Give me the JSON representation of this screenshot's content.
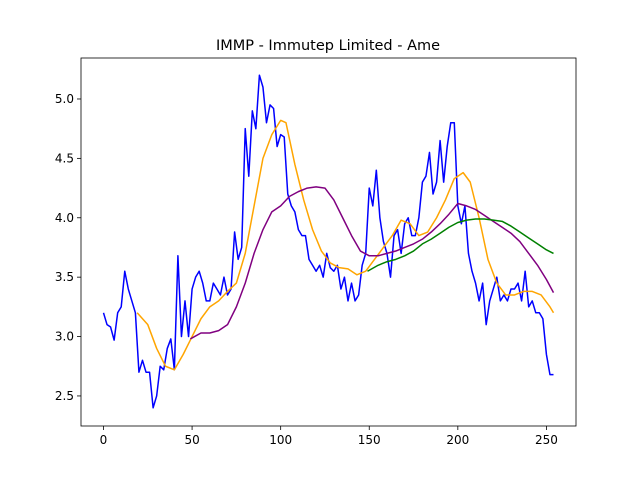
{
  "chart_data": {
    "type": "line",
    "title": "IMMP - Immutep Limited - Ame",
    "xlim": [
      -12.7,
      266.7
    ],
    "ylim": [
      2.247,
      5.345
    ],
    "xticks": [
      0,
      50,
      100,
      150,
      200,
      250
    ],
    "yticks": [
      2.5,
      {
        "value": 3,
        "label": "3.0"
      },
      3.5,
      {
        "value": 4,
        "label": "4.0"
      },
      4.5,
      {
        "value": 5,
        "label": "5.0"
      }
    ],
    "grid": false,
    "series": [
      {
        "color": "#0000ff",
        "x": [
          0,
          2,
          4,
          6,
          8,
          10,
          12,
          14,
          16,
          18,
          20,
          22,
          24,
          26,
          28,
          30,
          32,
          34,
          36,
          38,
          40,
          42,
          44,
          46,
          48,
          50,
          52,
          54,
          56,
          58,
          60,
          62,
          64,
          66,
          68,
          70,
          72,
          74,
          76,
          78,
          80,
          82,
          84,
          86,
          88,
          90,
          92,
          94,
          96,
          98,
          100,
          102,
          104,
          106,
          108,
          110,
          112,
          114,
          116,
          118,
          120,
          122,
          124,
          126,
          128,
          130,
          132,
          134,
          136,
          138,
          140,
          142,
          144,
          146,
          148,
          150,
          152,
          154,
          156,
          158,
          160,
          162,
          164,
          166,
          168,
          170,
          172,
          174,
          176,
          178,
          180,
          182,
          184,
          186,
          188,
          190,
          192,
          194,
          196,
          198,
          200,
          202,
          204,
          206,
          208,
          210,
          212,
          214,
          216,
          218,
          220,
          222,
          224,
          226,
          228,
          230,
          232,
          234,
          236,
          238,
          240,
          242,
          244,
          246,
          248,
          250,
          252,
          254
        ],
        "values": [
          3.2,
          3.1,
          3.08,
          2.97,
          3.2,
          3.25,
          3.55,
          3.4,
          3.3,
          3.2,
          2.7,
          2.8,
          2.7,
          2.7,
          2.4,
          2.5,
          2.75,
          2.72,
          2.9,
          2.98,
          2.72,
          3.68,
          3.0,
          3.3,
          3.0,
          3.4,
          3.5,
          3.55,
          3.45,
          3.3,
          3.3,
          3.45,
          3.4,
          3.35,
          3.5,
          3.35,
          3.4,
          3.88,
          3.65,
          3.75,
          4.75,
          4.35,
          4.9,
          4.75,
          5.2,
          5.1,
          4.8,
          4.95,
          4.92,
          4.6,
          4.7,
          4.68,
          4.2,
          4.1,
          4.05,
          3.9,
          3.85,
          3.85,
          3.65,
          3.6,
          3.55,
          3.6,
          3.5,
          3.7,
          3.58,
          3.55,
          3.6,
          3.4,
          3.5,
          3.3,
          3.45,
          3.3,
          3.35,
          3.6,
          3.7,
          4.25,
          4.1,
          4.4,
          4.0,
          3.8,
          3.7,
          3.5,
          3.85,
          3.9,
          3.7,
          3.95,
          4.0,
          3.85,
          3.85,
          4.0,
          4.3,
          4.35,
          4.55,
          4.2,
          4.3,
          4.65,
          4.3,
          4.6,
          4.8,
          4.8,
          4.1,
          3.95,
          4.1,
          3.7,
          3.55,
          3.45,
          3.3,
          3.45,
          3.1,
          3.3,
          3.4,
          3.5,
          3.3,
          3.35,
          3.3,
          3.4,
          3.4,
          3.45,
          3.3,
          3.55,
          3.25,
          3.3,
          3.2,
          3.2,
          3.15,
          2.85,
          2.68,
          2.68
        ]
      },
      {
        "color": "#ffa500",
        "x": [
          19,
          25,
          30,
          35,
          40,
          45,
          50,
          55,
          60,
          65,
          70,
          75,
          80,
          85,
          90,
          95,
          100,
          103,
          108,
          113,
          118,
          123,
          128,
          133,
          138,
          143,
          148,
          153,
          158,
          163,
          168,
          173,
          178,
          183,
          188,
          193,
          198,
          203,
          207,
          212,
          217,
          222,
          227,
          232,
          237,
          242,
          247,
          252,
          254
        ],
        "values": [
          3.2,
          3.1,
          2.9,
          2.75,
          2.72,
          2.85,
          3.0,
          3.15,
          3.25,
          3.3,
          3.38,
          3.45,
          3.7,
          4.1,
          4.5,
          4.7,
          4.82,
          4.8,
          4.45,
          4.15,
          3.9,
          3.72,
          3.62,
          3.58,
          3.57,
          3.52,
          3.55,
          3.65,
          3.75,
          3.85,
          3.98,
          3.95,
          3.85,
          3.88,
          4.0,
          4.15,
          4.33,
          4.38,
          4.3,
          4.0,
          3.65,
          3.45,
          3.35,
          3.35,
          3.38,
          3.38,
          3.35,
          3.25,
          3.2
        ]
      },
      {
        "color": "#800080",
        "x": [
          49,
          55,
          60,
          65,
          70,
          75,
          80,
          85,
          90,
          95,
          100,
          105,
          110,
          115,
          120,
          125,
          130,
          135,
          140,
          145,
          150,
          155,
          160,
          165,
          170,
          175,
          180,
          185,
          190,
          195,
          200,
          205,
          210,
          215,
          220,
          225,
          230,
          235,
          240,
          245,
          250,
          254
        ],
        "values": [
          2.98,
          3.03,
          3.03,
          3.05,
          3.1,
          3.25,
          3.45,
          3.7,
          3.9,
          4.05,
          4.1,
          4.18,
          4.22,
          4.25,
          4.26,
          4.25,
          4.15,
          4.0,
          3.85,
          3.72,
          3.68,
          3.68,
          3.7,
          3.72,
          3.75,
          3.78,
          3.82,
          3.88,
          3.95,
          4.03,
          4.12,
          4.1,
          4.07,
          4.02,
          3.97,
          3.92,
          3.87,
          3.8,
          3.7,
          3.6,
          3.48,
          3.37
        ]
      },
      {
        "color": "#008000",
        "x": [
          149,
          155,
          160,
          165,
          170,
          175,
          180,
          185,
          190,
          195,
          200,
          205,
          210,
          215,
          220,
          225,
          230,
          235,
          240,
          245,
          250,
          254
        ],
        "values": [
          3.55,
          3.6,
          3.63,
          3.65,
          3.68,
          3.72,
          3.78,
          3.82,
          3.87,
          3.92,
          3.96,
          3.98,
          3.99,
          3.99,
          3.98,
          3.97,
          3.93,
          3.88,
          3.83,
          3.78,
          3.73,
          3.7
        ]
      }
    ]
  }
}
